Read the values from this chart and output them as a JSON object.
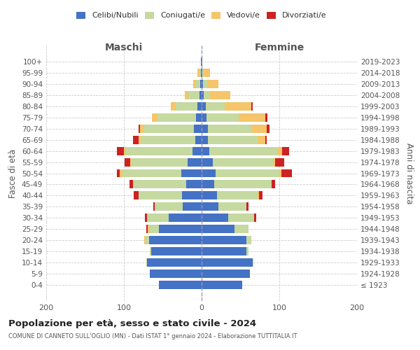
{
  "age_groups": [
    "100+",
    "95-99",
    "90-94",
    "85-89",
    "80-84",
    "75-79",
    "70-74",
    "65-69",
    "60-64",
    "55-59",
    "50-54",
    "45-49",
    "40-44",
    "35-39",
    "30-34",
    "25-29",
    "20-24",
    "15-19",
    "10-14",
    "5-9",
    "0-4"
  ],
  "birth_years": [
    "≤ 1923",
    "1924-1928",
    "1929-1933",
    "1934-1938",
    "1939-1943",
    "1944-1948",
    "1949-1953",
    "1954-1958",
    "1959-1963",
    "1964-1968",
    "1969-1973",
    "1974-1978",
    "1979-1983",
    "1984-1988",
    "1989-1993",
    "1994-1998",
    "1999-2003",
    "2004-2008",
    "2009-2013",
    "2014-2018",
    "2019-2023"
  ],
  "maschi": {
    "celibi": [
      1,
      1,
      2,
      3,
      5,
      7,
      10,
      8,
      12,
      18,
      26,
      20,
      25,
      24,
      42,
      55,
      68,
      65,
      70,
      67,
      55
    ],
    "coniugati": [
      0,
      2,
      5,
      14,
      28,
      50,
      65,
      70,
      85,
      72,
      76,
      68,
      56,
      36,
      28,
      12,
      4,
      2,
      1,
      0,
      0
    ],
    "vedovi": [
      0,
      2,
      4,
      5,
      7,
      7,
      4,
      3,
      3,
      2,
      3,
      0,
      0,
      0,
      0,
      2,
      2,
      0,
      0,
      0,
      0
    ],
    "divorziati": [
      0,
      0,
      0,
      0,
      0,
      0,
      2,
      7,
      9,
      7,
      4,
      5,
      6,
      2,
      3,
      2,
      0,
      0,
      0,
      0,
      0
    ]
  },
  "femmine": {
    "nubili": [
      1,
      1,
      2,
      3,
      5,
      6,
      8,
      8,
      10,
      14,
      18,
      16,
      20,
      22,
      34,
      42,
      58,
      58,
      66,
      62,
      52
    ],
    "coniugate": [
      0,
      2,
      5,
      8,
      25,
      42,
      56,
      64,
      88,
      78,
      82,
      74,
      52,
      36,
      34,
      18,
      6,
      2,
      1,
      0,
      0
    ],
    "vedove": [
      0,
      8,
      15,
      26,
      34,
      34,
      20,
      10,
      6,
      3,
      3,
      0,
      2,
      0,
      0,
      0,
      0,
      0,
      0,
      0,
      0
    ],
    "divorziate": [
      0,
      0,
      0,
      0,
      2,
      3,
      3,
      2,
      9,
      11,
      13,
      5,
      4,
      2,
      2,
      0,
      0,
      0,
      0,
      0,
      0
    ]
  },
  "colors": {
    "celibi": "#4472c4",
    "coniugati": "#c5d9a0",
    "vedovi": "#f5c56a",
    "divorziati": "#cc2222"
  },
  "xlim": 200,
  "title": "Popolazione per età, sesso e stato civile - 2024",
  "subtitle": "COMUNE DI CANNETO SULL'OGLIO (MN) - Dati ISTAT 1° gennaio 2024 - Elaborazione TUTTITALIA.IT",
  "xlabel_left": "Maschi",
  "xlabel_right": "Femmine",
  "ylabel": "Fasce di età",
  "ylabel_right": "Anni di nascita"
}
